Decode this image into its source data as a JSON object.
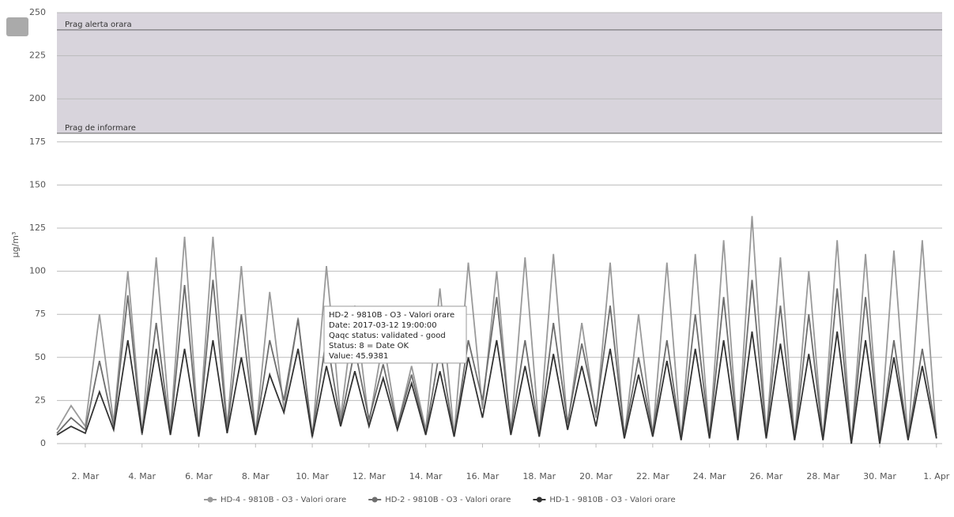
{
  "chart_data": {
    "type": "line",
    "y_label": "µg/m³",
    "x": [
      1,
      1.5,
      2,
      2.5,
      3,
      3.5,
      4,
      4.5,
      5,
      5.5,
      6,
      6.5,
      7,
      7.5,
      8,
      8.5,
      9,
      9.5,
      10,
      10.5,
      11,
      11.5,
      12,
      12.5,
      13,
      13.5,
      14,
      14.5,
      15,
      15.5,
      16,
      16.5,
      17,
      17.5,
      18,
      18.5,
      19,
      19.5,
      20,
      20.5,
      21,
      21.5,
      22,
      22.5,
      23,
      23.5,
      24,
      24.5,
      25,
      25.5,
      26,
      26.5,
      27,
      27.5,
      28,
      28.5,
      29,
      29.5,
      30,
      30.5,
      31,
      31.5,
      32
    ],
    "xlim": [
      1,
      32.2
    ],
    "xticks": [
      {
        "value": 2,
        "label": "2. Mar"
      },
      {
        "value": 4,
        "label": "4. Mar"
      },
      {
        "value": 6,
        "label": "6. Mar"
      },
      {
        "value": 8,
        "label": "8. Mar"
      },
      {
        "value": 10,
        "label": "10. Mar"
      },
      {
        "value": 12,
        "label": "12. Mar"
      },
      {
        "value": 14,
        "label": "14. Mar"
      },
      {
        "value": 16,
        "label": "16. Mar"
      },
      {
        "value": 18,
        "label": "18. Mar"
      },
      {
        "value": 20,
        "label": "20. Mar"
      },
      {
        "value": 22,
        "label": "22. Mar"
      },
      {
        "value": 24,
        "label": "24. Mar"
      },
      {
        "value": 26,
        "label": "26. Mar"
      },
      {
        "value": 28,
        "label": "28. Mar"
      },
      {
        "value": 30,
        "label": "30. Mar"
      },
      {
        "value": 32,
        "label": "1. Apr"
      }
    ],
    "ylim": [
      0,
      250
    ],
    "yticks": [
      0,
      25,
      50,
      75,
      100,
      125,
      150,
      175,
      200,
      225,
      250
    ],
    "grid": true,
    "plot_lines": [
      {
        "value": 180,
        "label": "Prag de informare"
      },
      {
        "value": 240,
        "label": "Prag alerta orara"
      }
    ],
    "band_color": "#d8d4dc",
    "series": [
      {
        "name": "HD-4 - 9810B - O3 - Valori orare",
        "color": "#9a9a9a",
        "values": [
          8,
          22,
          10,
          75,
          12,
          100,
          6,
          108,
          8,
          120,
          5,
          120,
          10,
          103,
          5,
          88,
          20,
          73,
          3,
          103,
          15,
          80,
          12,
          60,
          10,
          45,
          8,
          90,
          5,
          105,
          20,
          100,
          6,
          108,
          5,
          110,
          10,
          70,
          15,
          105,
          3,
          75,
          5,
          105,
          2,
          110,
          3,
          118,
          2,
          132,
          5,
          108,
          3,
          100,
          2,
          118,
          0,
          110,
          0,
          112,
          2,
          118,
          3
        ]
      },
      {
        "name": "HD-2 - 9810B - O3 - Valori orare",
        "color": "#6e6e6e",
        "values": [
          6,
          15,
          8,
          48,
          10,
          86,
          5,
          70,
          6,
          92,
          4,
          95,
          8,
          75,
          6,
          60,
          25,
          72,
          5,
          62,
          12,
          55,
          14,
          46,
          10,
          40,
          6,
          55,
          4,
          60,
          25,
          85,
          8,
          60,
          5,
          70,
          12,
          58,
          18,
          80,
          5,
          50,
          6,
          60,
          3,
          75,
          4,
          85,
          3,
          95,
          5,
          80,
          2,
          75,
          3,
          90,
          0,
          85,
          1,
          60,
          3,
          55,
          5
        ]
      },
      {
        "name": "HD-1 - 9810B - O3 - Valori orare",
        "color": "#333333",
        "values": [
          5,
          10,
          6,
          30,
          8,
          60,
          6,
          55,
          5,
          55,
          4,
          60,
          6,
          50,
          5,
          40,
          18,
          55,
          4,
          45,
          10,
          42,
          10,
          38,
          8,
          35,
          5,
          42,
          4,
          50,
          15,
          60,
          5,
          45,
          4,
          52,
          8,
          45,
          10,
          55,
          3,
          40,
          4,
          48,
          2,
          55,
          3,
          60,
          2,
          65,
          3,
          58,
          2,
          52,
          2,
          65,
          0,
          60,
          0,
          50,
          2,
          45,
          3
        ]
      }
    ],
    "tooltip": [
      "HD-2 - 9810B - O3 - Valori orare",
      "Date: 2017-03-12 19:00:00",
      "Qaqc status: validated - good",
      "Status: 8 = Date OK",
      "Value: 45.9381"
    ]
  }
}
